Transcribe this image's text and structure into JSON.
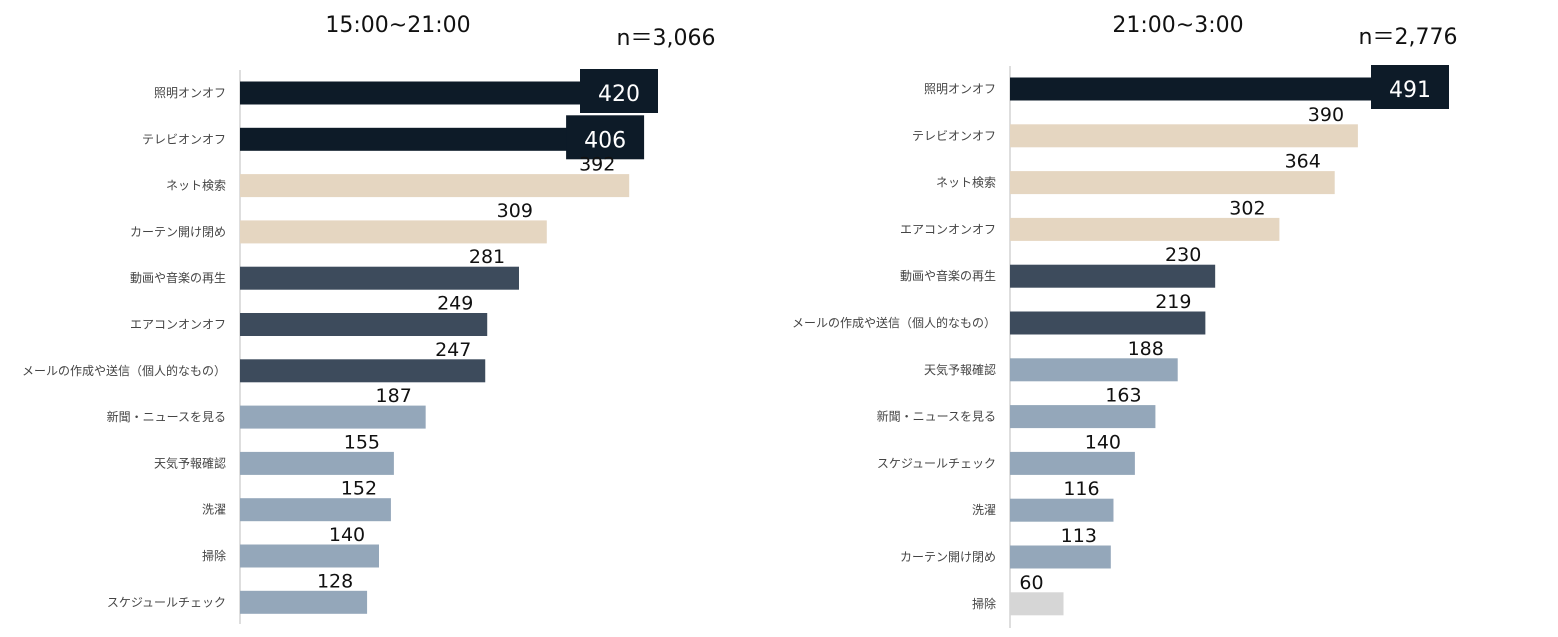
{
  "colors": {
    "dark": "#0d1b28",
    "beige": "#e5d6c1",
    "slate": "#3d4b5c",
    "blue": "#94a7ba",
    "gray": "#d6d6d6",
    "axis": "#c8c8c8"
  },
  "chart_data": [
    {
      "type": "bar",
      "orientation": "horizontal",
      "title": "15:00~21:00",
      "n_label": "n＝3,066",
      "categories": [
        "照明オンオフ",
        "テレビオンオフ",
        "ネット検索",
        "カーテン開け閉め",
        "動画や音楽の再生",
        "エアコンオンオフ",
        "メールの作成や送信（個人的なもの）",
        "新聞・ニュースを見る",
        "天気予報確認",
        "洗濯",
        "掃除",
        "スケジュールチェック"
      ],
      "values": [
        420,
        406,
        392,
        309,
        281,
        249,
        247,
        187,
        155,
        152,
        140,
        128
      ],
      "bar_colors": [
        "dark",
        "dark",
        "beige",
        "beige",
        "slate",
        "slate",
        "slate",
        "blue",
        "blue",
        "blue",
        "blue",
        "blue"
      ]
    },
    {
      "type": "bar",
      "orientation": "horizontal",
      "title": "21:00~3:00",
      "n_label": "n＝2,776",
      "categories": [
        "照明オンオフ",
        "テレビオンオフ",
        "ネット検索",
        "エアコンオンオフ",
        "動画や音楽の再生",
        "メールの作成や送信（個人的なもの）",
        "天気予報確認",
        "新聞・ニュースを見る",
        "スケジュールチェック",
        "洗濯",
        "カーテン開け閉め",
        "掃除"
      ],
      "values": [
        491,
        390,
        364,
        302,
        230,
        219,
        188,
        163,
        140,
        116,
        113,
        60
      ],
      "bar_colors": [
        "dark",
        "beige",
        "beige",
        "beige",
        "slate",
        "slate",
        "blue",
        "blue",
        "blue",
        "blue",
        "blue",
        "gray"
      ]
    }
  ]
}
